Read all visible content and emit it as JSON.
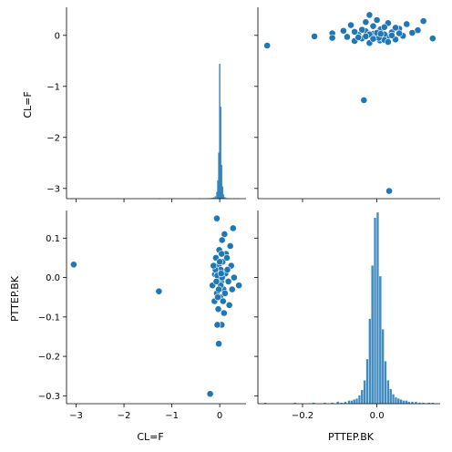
{
  "colors": {
    "accent": "#1f77b4",
    "bar_edge": "#ffffff"
  },
  "chart_data": {
    "type": "pairplot",
    "variables": [
      "CL=F",
      "PTTEP.BK"
    ],
    "axis_labels": {
      "x_left": "CL=F",
      "x_right": "PTTEP.BK",
      "y_top": "CL=F",
      "y_bottom": "PTTEP.BK"
    },
    "xlim_cl": [
      -3.2,
      0.55
    ],
    "xlim_pt": [
      -0.32,
      0.17
    ],
    "ylim_cl": [
      -3.2,
      0.55
    ],
    "ylim_pt": [
      -0.32,
      0.17
    ],
    "ticks_cl": [
      -3,
      -2,
      -1,
      0
    ],
    "ticks_pt": [
      -0.3,
      -0.2,
      -0.1,
      0.0,
      0.1
    ],
    "ticks_pt_x": [
      -0.2,
      0.0
    ],
    "tick_labels_cl": [
      "−3",
      "−2",
      "−1",
      "0"
    ],
    "tick_labels_pt": [
      "−0.3",
      "−0.2",
      "−0.1",
      "0.0",
      "0.1"
    ],
    "tick_labels_pt_x": [
      "−0.2",
      "0.0"
    ],
    "hist_cl": {
      "bin_start": -3.1,
      "bin_width": 0.028,
      "counts_at": [
        [
          -3.08,
          1
        ],
        [
          -1.25,
          1
        ],
        [
          -0.42,
          1
        ],
        [
          -0.25,
          1
        ],
        [
          -0.2,
          2
        ],
        [
          -0.15,
          3
        ],
        [
          -0.12,
          4
        ],
        [
          -0.09,
          8
        ],
        [
          -0.06,
          22
        ],
        [
          -0.04,
          60
        ],
        [
          -0.02,
          150
        ],
        [
          0.0,
          440
        ],
        [
          0.02,
          300
        ],
        [
          0.04,
          110
        ],
        [
          0.06,
          40
        ],
        [
          0.08,
          14
        ],
        [
          0.11,
          5
        ],
        [
          0.15,
          2
        ],
        [
          0.22,
          1
        ],
        [
          0.3,
          1
        ],
        [
          0.38,
          1
        ]
      ]
    },
    "hist_pt": {
      "x": [
        -0.3,
        -0.22,
        -0.17,
        -0.14,
        -0.12,
        -0.105,
        -0.095,
        -0.085,
        -0.075,
        -0.068,
        -0.061,
        -0.054,
        -0.047,
        -0.04,
        -0.033,
        -0.026,
        -0.019,
        -0.012,
        -0.005,
        0.002,
        0.009,
        0.016,
        0.023,
        0.03,
        0.037,
        0.044,
        0.051,
        0.058,
        0.065,
        0.072,
        0.079,
        0.086,
        0.095,
        0.105,
        0.115,
        0.125,
        0.14,
        0.15
      ],
      "counts": [
        1,
        1,
        1,
        1,
        1,
        2,
        1,
        2,
        3,
        3,
        4,
        5,
        8,
        13,
        22,
        42,
        80,
        130,
        175,
        180,
        120,
        70,
        40,
        22,
        14,
        9,
        6,
        5,
        4,
        3,
        3,
        2,
        2,
        2,
        1,
        1,
        1,
        1
      ]
    },
    "scatter": [
      [
        -3.05,
        0.033
      ],
      [
        -1.27,
        -0.035
      ],
      [
        -0.2,
        -0.295
      ],
      [
        -0.02,
        -0.168
      ],
      [
        0.04,
        -0.12
      ],
      [
        -0.05,
        -0.12
      ],
      [
        -0.06,
        0.15
      ],
      [
        -0.1,
        0.008
      ],
      [
        -0.15,
        -0.02
      ],
      [
        0.28,
        0.125
      ],
      [
        0.22,
        0.08
      ],
      [
        0.1,
        0.11
      ],
      [
        0.05,
        0.095
      ],
      [
        -0.08,
        0.05
      ],
      [
        0.13,
        0.06
      ],
      [
        -0.02,
        0.03
      ],
      [
        0.02,
        0.02
      ],
      [
        -0.04,
        0.01
      ],
      [
        0.03,
        -0.01
      ],
      [
        0.0,
        0.0
      ],
      [
        0.06,
        0.04
      ],
      [
        -0.06,
        -0.04
      ],
      [
        0.08,
        -0.03
      ],
      [
        -0.09,
        0.02
      ],
      [
        0.12,
        0.01
      ],
      [
        0.18,
        -0.01
      ],
      [
        0.24,
        0.03
      ],
      [
        0.3,
        0.0
      ],
      [
        0.26,
        -0.03
      ],
      [
        0.4,
        -0.02
      ],
      [
        0.2,
        -0.07
      ],
      [
        0.09,
        -0.09
      ],
      [
        -0.03,
        -0.08
      ],
      [
        0.01,
        -0.05
      ],
      [
        -0.11,
        -0.06
      ],
      [
        0.15,
        0.05
      ],
      [
        -0.13,
        0.03
      ],
      [
        0.07,
        -0.06
      ],
      [
        -0.01,
        0.07
      ],
      [
        0.04,
        0.06
      ],
      [
        0.02,
        -0.02
      ],
      [
        -0.05,
        0.005
      ],
      [
        0.11,
        -0.04
      ],
      [
        -0.07,
        -0.01
      ],
      [
        0.16,
        0.02
      ],
      [
        0.05,
        0.0
      ],
      [
        -0.02,
        -0.03
      ],
      [
        0.0,
        0.04
      ],
      [
        0.03,
        0.01
      ],
      [
        -0.04,
        -0.05
      ]
    ]
  }
}
